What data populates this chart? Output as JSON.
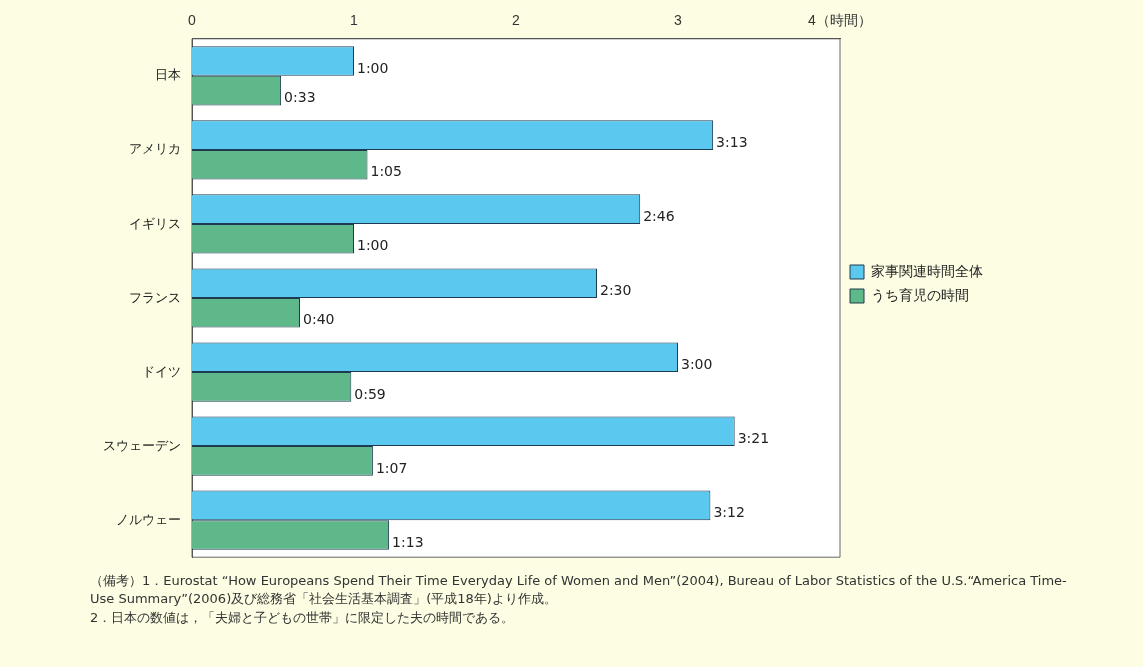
{
  "chart_data": {
    "type": "bar",
    "orientation": "horizontal",
    "categories": [
      "日本",
      "アメリカ",
      "イギリス",
      "フランス",
      "ドイツ",
      "スウェーデン",
      "ノルウェー"
    ],
    "series": [
      {
        "name": "家事関連時間全体",
        "color": "#5bc8f0",
        "values": [
          1,
          3.2167,
          2.7667,
          2.5,
          3,
          3.35,
          3.2
        ],
        "value_labels": [
          "1:00",
          "3:13",
          "2:46",
          "2:30",
          "3:00",
          "3:21",
          "3:12"
        ]
      },
      {
        "name": "うち育児の時間",
        "color": "#5fb88a",
        "values": [
          0.55,
          1.0833,
          1,
          0.6667,
          0.9833,
          1.1167,
          1.2167
        ],
        "value_labels": [
          "0:33",
          "1:05",
          "1:00",
          "0:40",
          "0:59",
          "1:07",
          "1:13"
        ]
      }
    ],
    "xlim": [
      0,
      4
    ],
    "xticks": [
      0,
      1,
      2,
      3,
      {
        "value": 4,
        "label": "4（時間）"
      }
    ],
    "grid": false,
    "legend": "right",
    "annotations": [
      "（備考）1．Eurostat “How Europeans Spend Their Time Everyday Life of Women and Men”(2004), Bureau of Labor Statistics of the U.S.“America Time-Use Summary”(2006)及び総務省「社会生活基本調査」(平成18年)より作成。",
      "2．日本の数値は，「夫婦と子どもの世帯」に限定した夫の時間である。"
    ]
  }
}
